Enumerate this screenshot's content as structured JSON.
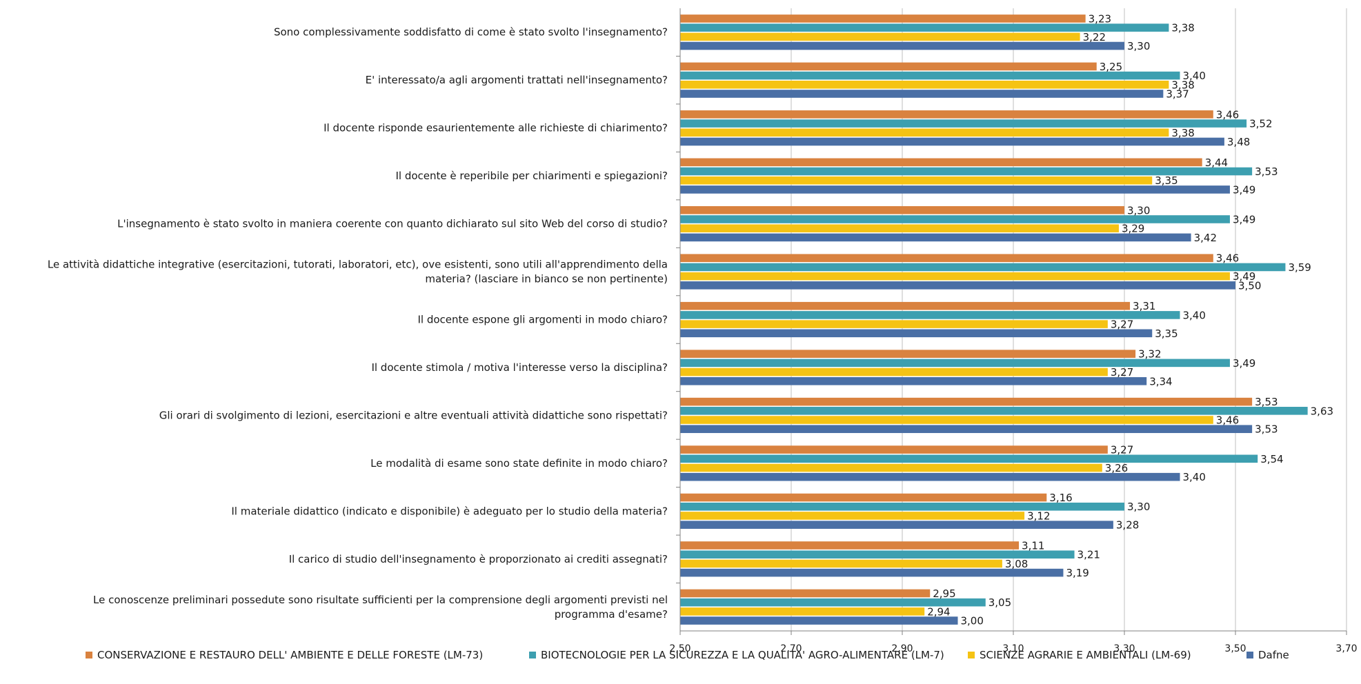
{
  "chart_data": {
    "type": "bar",
    "orientation": "horizontal",
    "title": "",
    "xlabel": "",
    "ylabel": "",
    "xlim": [
      2.5,
      3.7
    ],
    "x_ticks": [
      "2,50",
      "2,70",
      "2,90",
      "3,10",
      "3,30",
      "3,50",
      "3,70"
    ],
    "x_tick_values": [
      2.5,
      2.7,
      2.9,
      3.1,
      3.3,
      3.5,
      3.7
    ],
    "grid": true,
    "legend_position": "bottom",
    "categories": [
      [
        "Sono complessivamente soddisfatto di come è stato svolto l'insegnamento?"
      ],
      [
        "E' interessato/a agli argomenti trattati nell'insegnamento?"
      ],
      [
        "Il docente risponde esaurientemente alle richieste di chiarimento?"
      ],
      [
        "Il docente è reperibile per chiarimenti e spiegazioni?"
      ],
      [
        "L'insegnamento è stato svolto in maniera coerente con quanto dichiarato sul sito Web del corso di studio?"
      ],
      [
        "Le attività didattiche integrative (esercitazioni, tutorati, laboratori, etc), ove esistenti, sono utili all'apprendimento della",
        "materia? (lasciare in bianco se non pertinente)"
      ],
      [
        "Il docente espone gli argomenti in modo chiaro?"
      ],
      [
        "Il docente stimola / motiva l'interesse verso la disciplina?"
      ],
      [
        "Gli orari di svolgimento di lezioni, esercitazioni e altre eventuali attività didattiche sono rispettati?"
      ],
      [
        "Le modalità di esame sono state definite in modo chiaro?"
      ],
      [
        "Il materiale didattico (indicato e disponibile) è adeguato per lo studio della materia?"
      ],
      [
        "Il carico di studio dell'insegnamento è proporzionato ai crediti assegnati?"
      ],
      [
        "Le conoscenze preliminari possedute sono risultate sufficienti per la comprensione degli argomenti previsti nel",
        "programma d'esame?"
      ]
    ],
    "series": [
      {
        "name": "CONSERVAZIONE E RESTAURO DELL' AMBIENTE E DELLE FORESTE (LM-73)",
        "color": "#d9823f",
        "values": [
          3.23,
          3.25,
          3.46,
          3.44,
          3.3,
          3.46,
          3.31,
          3.32,
          3.53,
          3.27,
          3.16,
          3.11,
          2.95
        ],
        "labels": [
          "3,23",
          "3,25",
          "3,46",
          "3,44",
          "3,30",
          "3,46",
          "3,31",
          "3,32",
          "3,53",
          "3,27",
          "3,16",
          "3,11",
          "2,95"
        ]
      },
      {
        "name": "BIOTECNOLOGIE PER LA SICUREZZA E LA QUALITA' AGRO-ALIMENTARE (LM-7)",
        "color": "#3d9fb0",
        "values": [
          3.38,
          3.4,
          3.52,
          3.53,
          3.49,
          3.59,
          3.4,
          3.49,
          3.63,
          3.54,
          3.3,
          3.21,
          3.05
        ],
        "labels": [
          "3,38",
          "3,40",
          "3,52",
          "3,53",
          "3,49",
          "3,59",
          "3,40",
          "3,49",
          "3,63",
          "3,54",
          "3,30",
          "3,21",
          "3,05"
        ]
      },
      {
        "name": "SCIENZE AGRARIE E AMBIENTALI (LM-69)",
        "color": "#f5c314",
        "values": [
          3.22,
          3.38,
          3.38,
          3.35,
          3.29,
          3.49,
          3.27,
          3.27,
          3.46,
          3.26,
          3.12,
          3.08,
          2.94
        ],
        "labels": [
          "3,22",
          "3,38",
          "3,38",
          "3,35",
          "3,29",
          "3,49",
          "3,27",
          "3,27",
          "3,46",
          "3,26",
          "3,12",
          "3,08",
          "2,94"
        ]
      },
      {
        "name": "Dafne",
        "color": "#4a6fa5",
        "values": [
          3.3,
          3.37,
          3.48,
          3.49,
          3.42,
          3.5,
          3.35,
          3.34,
          3.53,
          3.4,
          3.28,
          3.19,
          3.0
        ],
        "labels": [
          "3,30",
          "3,37",
          "3,48",
          "3,49",
          "3,42",
          "3,50",
          "3,35",
          "3,34",
          "3,53",
          "3,40",
          "3,28",
          "3,19",
          "3,00"
        ]
      }
    ]
  }
}
